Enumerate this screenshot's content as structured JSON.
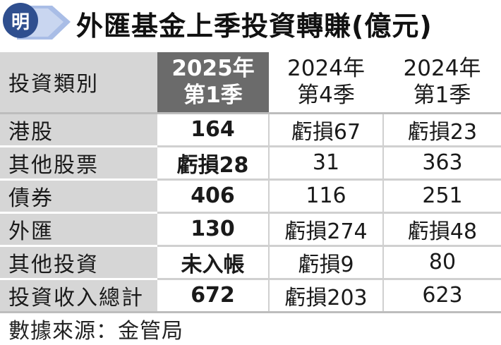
{
  "header": {
    "logo_text": "明",
    "title": "外匯基金上季投資轉賺(億元)"
  },
  "colors": {
    "brand_blue": "#2f4f8f",
    "header_dark": "#6b6b6b",
    "row_label_gray": "#d6d6d6"
  },
  "table": {
    "corner_label": "投資類別",
    "columns": [
      {
        "line1": "2025年",
        "line2": "第1季"
      },
      {
        "line1": "2024年",
        "line2": "第4季"
      },
      {
        "line1": "2024年",
        "line2": "第1季"
      }
    ],
    "rows": [
      {
        "label": "港股",
        "values": [
          "164",
          "虧損67",
          "虧損23"
        ]
      },
      {
        "label": "其他股票",
        "values": [
          "虧損28",
          "31",
          "363"
        ]
      },
      {
        "label": "債券",
        "values": [
          "406",
          "116",
          "251"
        ]
      },
      {
        "label": "外匯",
        "values": [
          "130",
          "虧損274",
          "虧損48"
        ]
      },
      {
        "label": "其他投資",
        "values": [
          "未入帳",
          "虧損9",
          "80"
        ]
      },
      {
        "label": "投資收入總計",
        "values": [
          "672",
          "虧損203",
          "623"
        ]
      }
    ]
  },
  "footer": {
    "source": "數據來源：金管局"
  }
}
